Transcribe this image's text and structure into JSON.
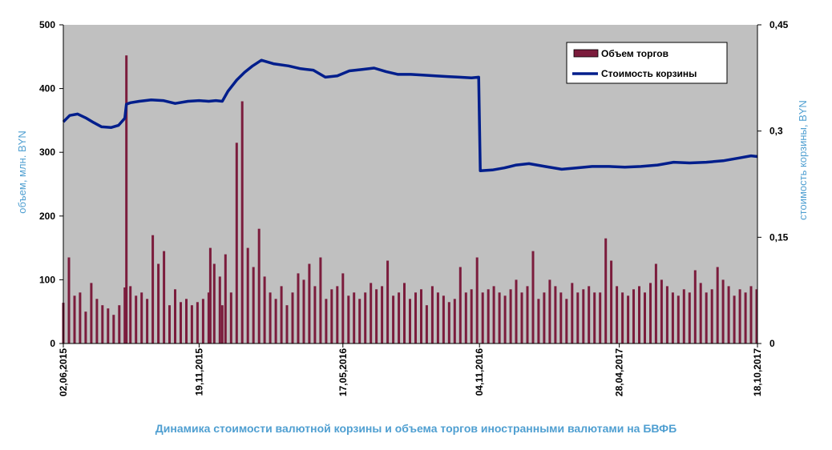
{
  "chart_data": {
    "type": "bar+line",
    "title": "Динамика стоимости валютной корзины и объема торгов иностранными валютами на БВФБ",
    "y_left": {
      "label": "объем, млн. BYN",
      "min": 0,
      "max": 500,
      "ticks": [
        "0",
        "100",
        "200",
        "300",
        "400",
        "500"
      ]
    },
    "y_right": {
      "label": "стоимость корзины, BYN",
      "min": 0,
      "max": 0.45,
      "ticks": [
        "0",
        "0,15",
        "0,3",
        "0,45"
      ]
    },
    "x_ticks": [
      {
        "label": "02,06,2015",
        "date": "2015-06-02"
      },
      {
        "label": "19,11,2015",
        "date": "2015-11-19"
      },
      {
        "label": "17,05,2016",
        "date": "2016-05-17"
      },
      {
        "label": "04,11,2016",
        "date": "2016-11-04"
      },
      {
        "label": "28,04,2017",
        "date": "2017-04-28"
      },
      {
        "label": "18,10,2017",
        "date": "2017-10-18"
      }
    ],
    "x_range": [
      "2015-06-02",
      "2017-10-18"
    ],
    "plot_background": "#c0c0c0",
    "grid": false,
    "legend": {
      "position": "top-right",
      "entries": [
        "Объем торгов",
        "Стоимость корзины"
      ]
    },
    "series": [
      {
        "name": "Объем торгов",
        "type": "bar",
        "axis": "left",
        "color": "#7b1c3c",
        "dates": [
          "2015-06-02",
          "2015-06-09",
          "2015-06-16",
          "2015-06-23",
          "2015-06-30",
          "2015-07-07",
          "2015-07-14",
          "2015-07-21",
          "2015-07-28",
          "2015-08-04",
          "2015-08-11",
          "2015-08-18",
          "2015-08-20",
          "2015-08-25",
          "2015-09-01",
          "2015-09-08",
          "2015-09-15",
          "2015-09-22",
          "2015-09-29",
          "2015-10-06",
          "2015-10-13",
          "2015-10-20",
          "2015-10-27",
          "2015-11-03",
          "2015-11-10",
          "2015-11-17",
          "2015-11-24",
          "2015-12-01",
          "2015-12-03",
          "2015-12-08",
          "2015-12-15",
          "2015-12-18",
          "2015-12-22",
          "2015-12-29",
          "2016-01-05",
          "2016-01-12",
          "2016-01-19",
          "2016-01-26",
          "2016-02-02",
          "2016-02-09",
          "2016-02-16",
          "2016-02-23",
          "2016-03-01",
          "2016-03-08",
          "2016-03-15",
          "2016-03-22",
          "2016-03-29",
          "2016-04-05",
          "2016-04-12",
          "2016-04-19",
          "2016-04-26",
          "2016-05-03",
          "2016-05-10",
          "2016-05-17",
          "2016-05-24",
          "2016-05-31",
          "2016-06-07",
          "2016-06-14",
          "2016-06-21",
          "2016-06-28",
          "2016-07-05",
          "2016-07-12",
          "2016-07-19",
          "2016-07-26",
          "2016-08-02",
          "2016-08-09",
          "2016-08-16",
          "2016-08-23",
          "2016-08-30",
          "2016-09-06",
          "2016-09-13",
          "2016-09-20",
          "2016-09-27",
          "2016-10-04",
          "2016-10-11",
          "2016-10-18",
          "2016-10-25",
          "2016-11-01",
          "2016-11-08",
          "2016-11-15",
          "2016-11-22",
          "2016-11-29",
          "2016-12-06",
          "2016-12-13",
          "2016-12-20",
          "2016-12-27",
          "2017-01-03",
          "2017-01-10",
          "2017-01-17",
          "2017-01-24",
          "2017-01-31",
          "2017-02-07",
          "2017-02-14",
          "2017-02-21",
          "2017-02-28",
          "2017-03-07",
          "2017-03-14",
          "2017-03-21",
          "2017-03-28",
          "2017-04-04",
          "2017-04-11",
          "2017-04-18",
          "2017-04-25",
          "2017-05-02",
          "2017-05-09",
          "2017-05-16",
          "2017-05-23",
          "2017-05-30",
          "2017-06-06",
          "2017-06-13",
          "2017-06-20",
          "2017-06-27",
          "2017-07-04",
          "2017-07-11",
          "2017-07-18",
          "2017-07-25",
          "2017-08-01",
          "2017-08-08",
          "2017-08-15",
          "2017-08-22",
          "2017-08-29",
          "2017-09-05",
          "2017-09-12",
          "2017-09-19",
          "2017-09-26",
          "2017-10-03",
          "2017-10-10",
          "2017-10-17"
        ],
        "values": [
          64,
          135,
          75,
          80,
          50,
          95,
          70,
          60,
          55,
          45,
          60,
          88,
          452,
          90,
          75,
          80,
          70,
          170,
          125,
          145,
          60,
          85,
          65,
          70,
          60,
          65,
          70,
          80,
          150,
          125,
          105,
          60,
          140,
          80,
          315,
          380,
          150,
          120,
          180,
          105,
          80,
          70,
          90,
          60,
          80,
          110,
          100,
          125,
          90,
          135,
          70,
          85,
          90,
          110,
          75,
          80,
          70,
          80,
          95,
          85,
          90,
          130,
          75,
          80,
          95,
          70,
          80,
          85,
          60,
          90,
          80,
          75,
          65,
          70,
          120,
          80,
          85,
          135,
          80,
          85,
          90,
          80,
          75,
          85,
          100,
          80,
          90,
          145,
          70,
          80,
          100,
          90,
          80,
          70,
          95,
          80,
          85,
          90,
          80,
          80,
          165,
          130,
          90,
          80,
          75,
          85,
          90,
          80,
          95,
          125,
          100,
          90,
          80,
          75,
          85,
          80,
          115,
          95,
          80,
          85,
          120,
          100,
          90,
          75,
          85,
          80,
          90,
          85
        ]
      },
      {
        "name": "Стоимость корзины",
        "type": "line",
        "axis": "right",
        "color": "#001e8c",
        "dates": [
          "2015-06-02",
          "2015-06-10",
          "2015-06-20",
          "2015-07-01",
          "2015-07-10",
          "2015-07-20",
          "2015-08-01",
          "2015-08-10",
          "2015-08-18",
          "2015-08-20",
          "2015-08-25",
          "2015-09-05",
          "2015-09-20",
          "2015-10-05",
          "2015-10-20",
          "2015-11-05",
          "2015-11-19",
          "2015-12-01",
          "2015-12-10",
          "2015-12-18",
          "2015-12-25",
          "2016-01-05",
          "2016-01-15",
          "2016-01-25",
          "2016-02-05",
          "2016-02-20",
          "2016-03-10",
          "2016-03-25",
          "2016-04-10",
          "2016-04-25",
          "2016-05-10",
          "2016-05-25",
          "2016-06-10",
          "2016-06-25",
          "2016-07-10",
          "2016-07-25",
          "2016-08-10",
          "2016-08-25",
          "2016-09-10",
          "2016-09-25",
          "2016-10-10",
          "2016-10-25",
          "2016-11-03",
          "2016-11-05",
          "2016-11-20",
          "2016-12-05",
          "2016-12-20",
          "2017-01-05",
          "2017-01-25",
          "2017-02-15",
          "2017-03-05",
          "2017-03-25",
          "2017-04-15",
          "2017-05-05",
          "2017-05-25",
          "2017-06-15",
          "2017-07-05",
          "2017-07-25",
          "2017-08-15",
          "2017-09-05",
          "2017-09-25",
          "2017-10-10",
          "2017-10-18"
        ],
        "values": [
          0.313,
          0.322,
          0.324,
          0.318,
          0.312,
          0.306,
          0.305,
          0.308,
          0.318,
          0.338,
          0.34,
          0.342,
          0.344,
          0.343,
          0.339,
          0.342,
          0.343,
          0.342,
          0.343,
          0.342,
          0.356,
          0.372,
          0.383,
          0.392,
          0.4,
          0.395,
          0.392,
          0.388,
          0.386,
          0.376,
          0.378,
          0.385,
          0.387,
          0.389,
          0.384,
          0.38,
          0.38,
          0.379,
          0.378,
          0.377,
          0.376,
          0.375,
          0.376,
          0.244,
          0.245,
          0.248,
          0.252,
          0.254,
          0.25,
          0.246,
          0.248,
          0.25,
          0.25,
          0.249,
          0.25,
          0.252,
          0.256,
          0.255,
          0.256,
          0.258,
          0.262,
          0.265,
          0.264
        ]
      }
    ]
  }
}
